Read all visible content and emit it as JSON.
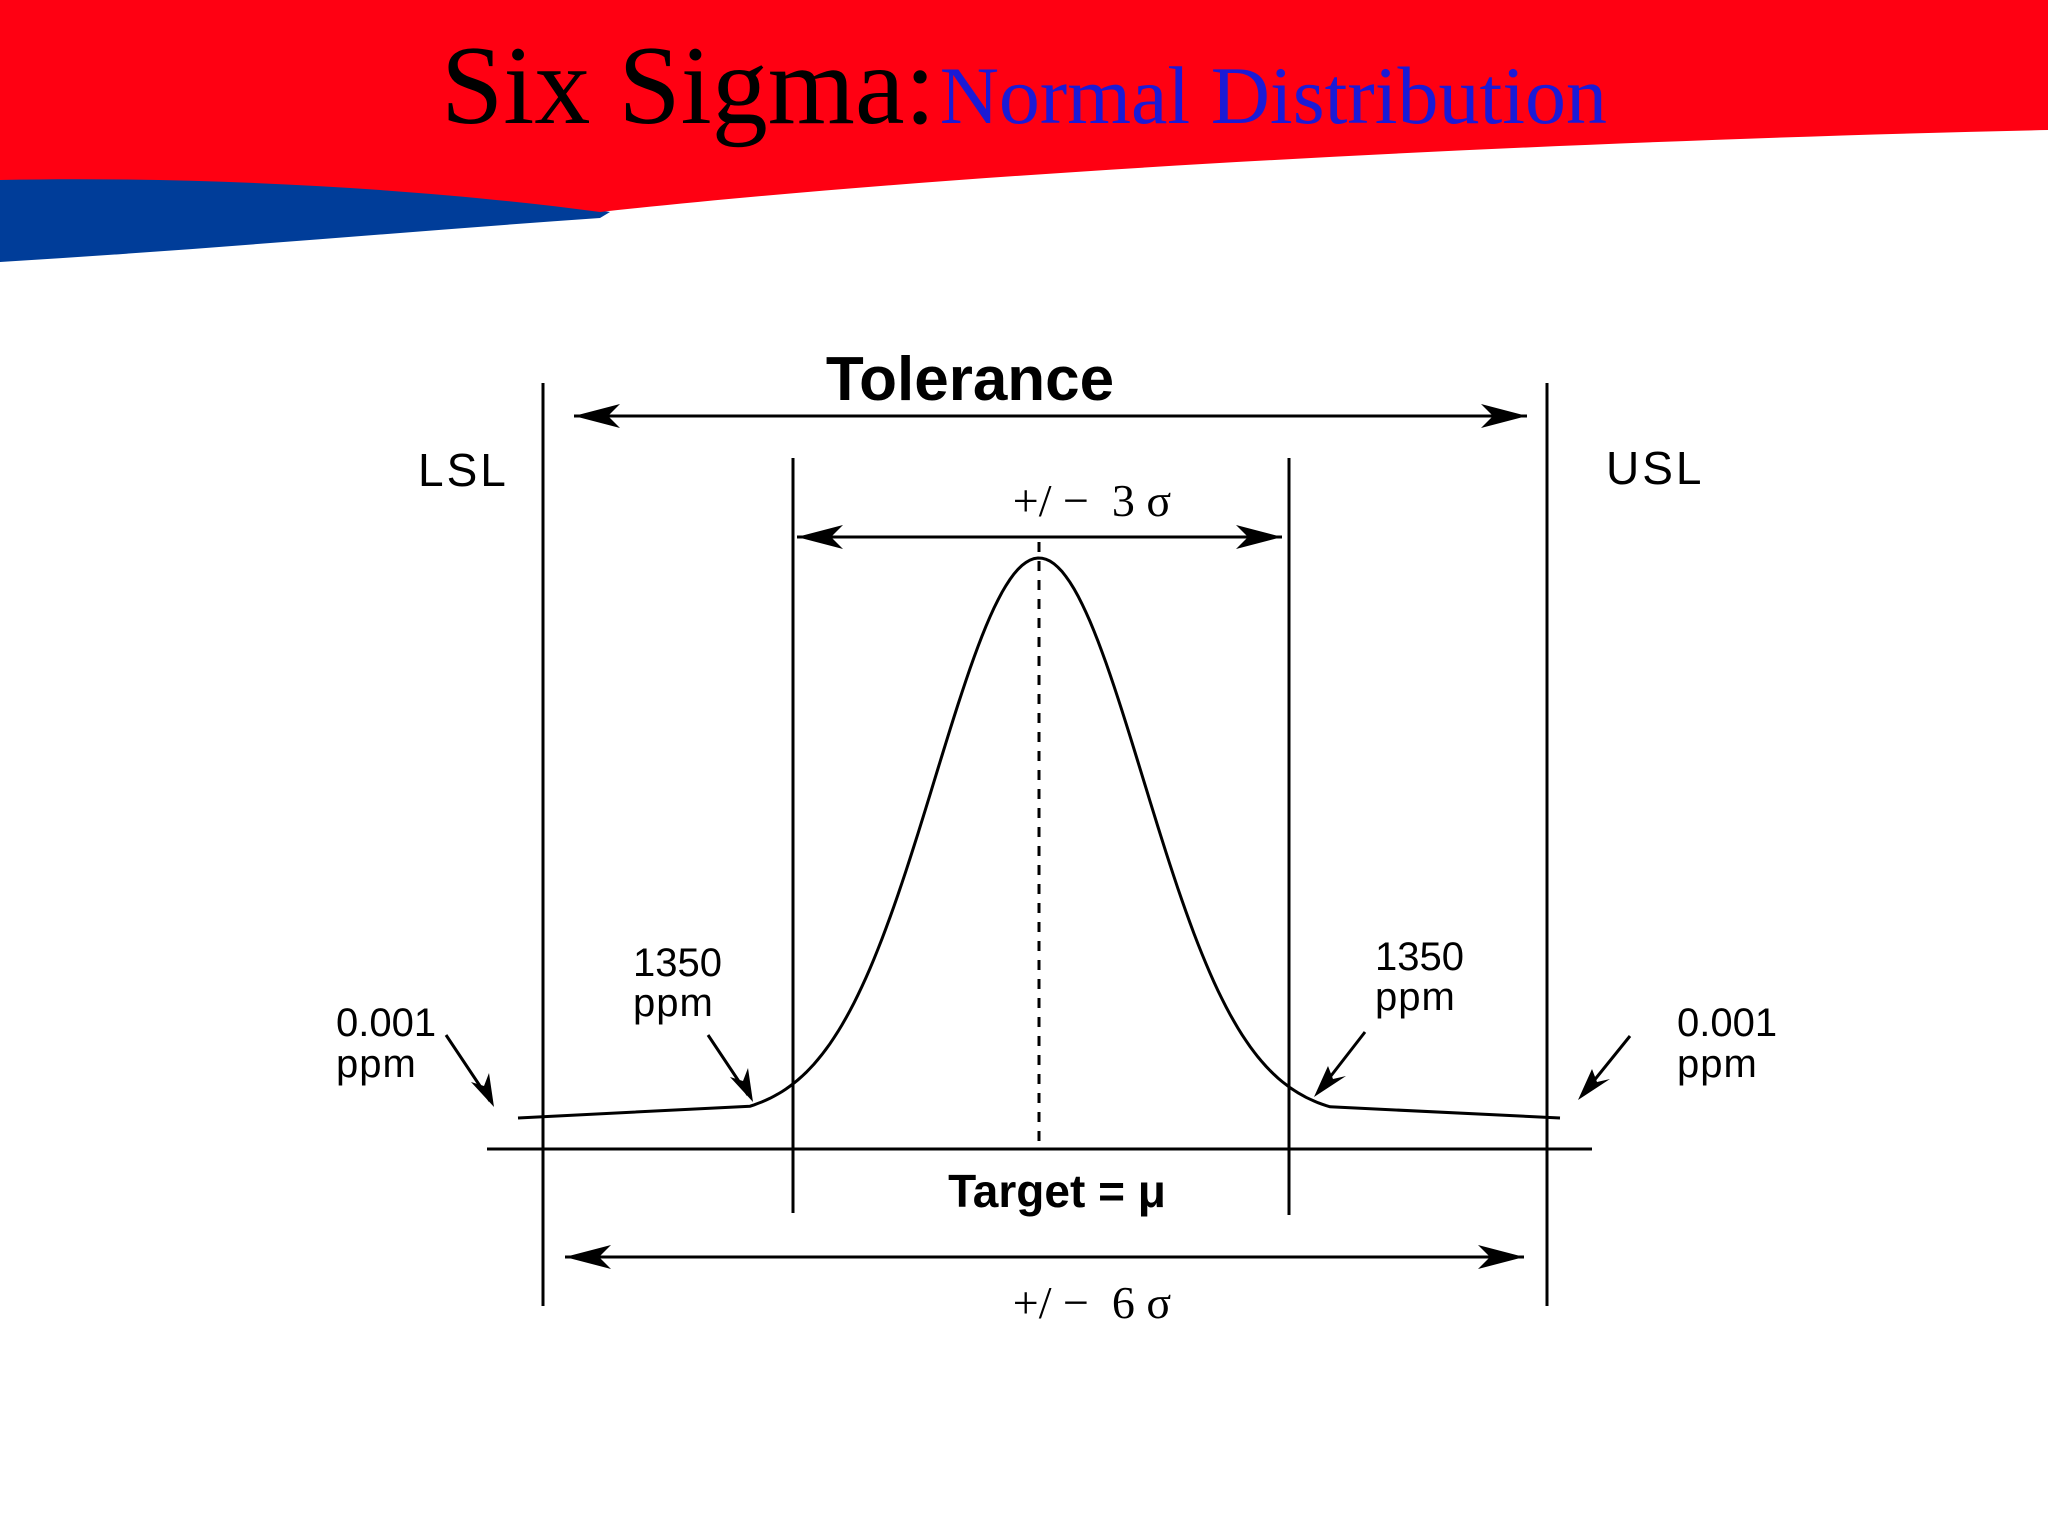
{
  "title": {
    "main": "Six Sigma:",
    "sub": "Normal Distribution"
  },
  "colors": {
    "banner_red": "#ff0012",
    "banner_blue": "#003d99",
    "subtitle_blue": "#1a1ad6",
    "ink": "#000000"
  },
  "diagram": {
    "tolerance_label": "Tolerance",
    "lsl_label": "LSL",
    "usl_label": "USL",
    "three_sigma_label": "+/ −  3 σ",
    "six_sigma_label": "+/ −  6 σ",
    "target_label": "Target = μ",
    "left_outer": {
      "value": "0.001",
      "unit": "ppm"
    },
    "left_inner": {
      "value": "1350",
      "unit": "ppm"
    },
    "right_inner": {
      "value": "1350",
      "unit": "ppm"
    },
    "right_outer": {
      "value": "0.001",
      "unit": "ppm"
    }
  }
}
